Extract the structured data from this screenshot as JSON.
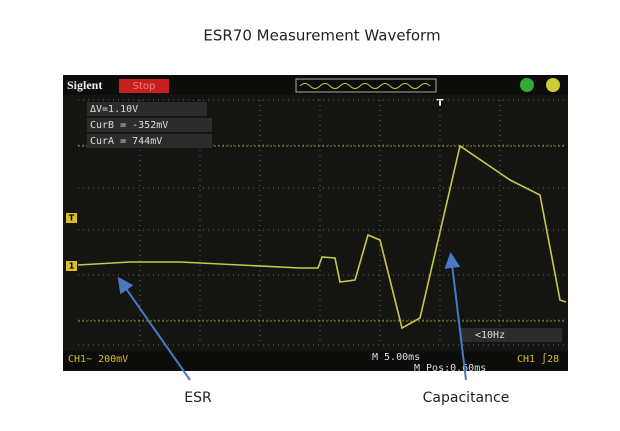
{
  "title": "ESR70 Measurement Waveform",
  "scope": {
    "brand": "Siglent",
    "status": "Stop",
    "trigger_marker": "T",
    "channel_marker": "1",
    "readouts": [
      "ΔV=1.10V",
      "CurB = -352mV",
      "CurA = 744mV"
    ],
    "trigger_frequency": "<10Hz",
    "channel_scale": "CH1~ 200mV",
    "timebase": "M 5.00ms",
    "position": "M Pos:0.60ms",
    "trigger_info": "CH1 ∫28"
  },
  "annotations": [
    "ESR",
    "Capacitance"
  ]
}
